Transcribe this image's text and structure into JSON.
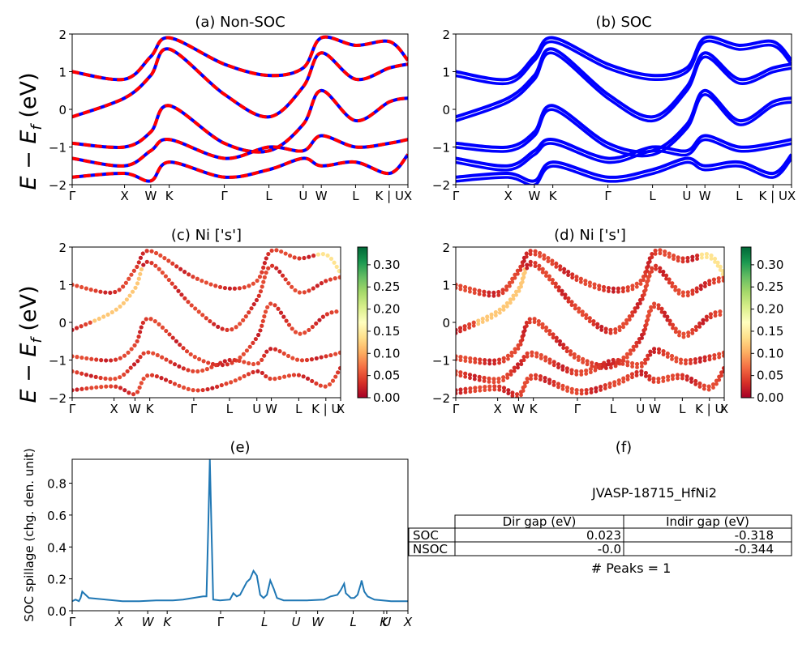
{
  "figure": {
    "ylabel_bands": "E − E",
    "ylabel_sub": "f",
    "ylabel_unit": " (eV)",
    "hs_labels": [
      "Γ",
      "X",
      "W",
      "K",
      "Γ",
      "L",
      "U",
      "W",
      "L",
      "K | U",
      "X"
    ]
  },
  "chart_data": [
    {
      "id": "a",
      "type": "line",
      "title": "(a) Non-SOC",
      "ylabel": "E − E_f (eV)",
      "ylim": [
        -2,
        2
      ],
      "yticks": [
        -2,
        -1,
        0,
        1,
        2
      ],
      "xtick_labels": [
        "Γ",
        "X",
        "W",
        "K",
        "Γ",
        "L",
        "U",
        "W",
        "L",
        "K | U",
        "X"
      ],
      "series_colors": [
        "#ff0000",
        "#0000ff"
      ],
      "band_anchor_energies": [
        [
          -0.2,
          0.3,
          0.9,
          1.6,
          0.4,
          -0.2,
          0.6,
          1.5,
          0.8,
          1.1,
          1.2
        ],
        [
          -0.9,
          -1.0,
          -0.6,
          0.1,
          -0.9,
          -1.1,
          -0.4,
          0.5,
          -0.3,
          0.2,
          0.3
        ],
        [
          -1.3,
          -1.5,
          -1.1,
          -0.8,
          -1.3,
          -1.0,
          -1.1,
          -0.7,
          -1.0,
          -0.9,
          -0.8
        ],
        [
          -1.8,
          -1.7,
          -1.9,
          -1.4,
          -1.8,
          -1.6,
          -1.3,
          -1.5,
          -1.4,
          -1.7,
          -1.2
        ],
        [
          1.0,
          0.8,
          1.4,
          1.9,
          1.2,
          0.9,
          1.1,
          1.9,
          1.7,
          1.8,
          1.3
        ]
      ]
    },
    {
      "id": "b",
      "type": "line",
      "title": "(b) SOC",
      "ylim": [
        -2,
        2
      ],
      "yticks": [
        -2,
        -1,
        0,
        1,
        2
      ],
      "xtick_labels": [
        "Γ",
        "X",
        "W",
        "K",
        "Γ",
        "L",
        "U",
        "W",
        "L",
        "K | U",
        "X"
      ],
      "series_colors": [
        "#0000ff"
      ],
      "band_anchor_energies": [
        [
          -0.2,
          0.3,
          0.9,
          1.6,
          0.4,
          -0.2,
          0.6,
          1.5,
          0.8,
          1.1,
          1.2
        ],
        [
          -0.9,
          -1.0,
          -0.6,
          0.1,
          -0.9,
          -1.1,
          -0.4,
          0.5,
          -0.3,
          0.2,
          0.3
        ],
        [
          -1.3,
          -1.5,
          -1.1,
          -0.8,
          -1.3,
          -1.0,
          -1.1,
          -0.7,
          -1.0,
          -0.9,
          -0.8
        ],
        [
          -1.8,
          -1.7,
          -1.9,
          -1.4,
          -1.8,
          -1.6,
          -1.3,
          -1.5,
          -1.4,
          -1.7,
          -1.2
        ],
        [
          1.0,
          0.8,
          1.4,
          1.9,
          1.2,
          0.9,
          1.1,
          1.9,
          1.7,
          1.8,
          1.3
        ]
      ]
    },
    {
      "id": "c",
      "type": "scatter",
      "title": "(c)  Ni ['s']",
      "ylabel": "E − E_f (eV)",
      "ylim": [
        -2,
        2
      ],
      "yticks": [
        -2,
        -1,
        0,
        1,
        2
      ],
      "xtick_labels": [
        "Γ",
        "X",
        "W",
        "K",
        "Γ",
        "L",
        "U",
        "W",
        "L",
        "K | U",
        "X"
      ],
      "colorbar": {
        "cmap": "RdYlGn",
        "range": [
          0,
          0.34
        ],
        "ticks": [
          "0.00",
          "0.05",
          "0.10",
          "0.15",
          "0.20",
          "0.25",
          "0.30"
        ]
      },
      "band_anchor_energies": [
        [
          -0.2,
          0.3,
          0.9,
          1.6,
          0.4,
          -0.2,
          0.6,
          1.5,
          0.8,
          1.1,
          1.2
        ],
        [
          -0.9,
          -1.0,
          -0.6,
          0.1,
          -0.9,
          -1.1,
          -0.4,
          0.5,
          -0.3,
          0.2,
          0.3
        ],
        [
          -1.3,
          -1.5,
          -1.1,
          -0.8,
          -1.3,
          -1.0,
          -1.1,
          -0.7,
          -1.0,
          -0.9,
          -0.8
        ],
        [
          -1.8,
          -1.7,
          -1.9,
          -1.4,
          -1.8,
          -1.6,
          -1.3,
          -1.5,
          -1.4,
          -1.7,
          -1.2
        ],
        [
          1.0,
          0.8,
          1.4,
          1.9,
          1.2,
          0.9,
          1.1,
          1.9,
          1.7,
          1.8,
          1.3
        ]
      ]
    },
    {
      "id": "d",
      "type": "scatter",
      "title": "(d) Ni ['s']",
      "ylim": [
        -2,
        2
      ],
      "yticks": [
        -2,
        -1,
        0,
        1,
        2
      ],
      "xtick_labels": [
        "Γ",
        "X",
        "W",
        "K",
        "Γ",
        "L",
        "U",
        "W",
        "L",
        "K | U",
        "X"
      ],
      "colorbar": {
        "cmap": "RdYlGn",
        "range": [
          0,
          0.34
        ],
        "ticks": [
          "0.00",
          "0.05",
          "0.10",
          "0.15",
          "0.20",
          "0.25",
          "0.30"
        ]
      },
      "band_anchor_energies": [
        [
          -0.2,
          0.3,
          0.9,
          1.6,
          0.4,
          -0.2,
          0.6,
          1.5,
          0.8,
          1.1,
          1.2
        ],
        [
          -0.9,
          -1.0,
          -0.6,
          0.1,
          -0.9,
          -1.1,
          -0.4,
          0.5,
          -0.3,
          0.2,
          0.3
        ],
        [
          -1.3,
          -1.5,
          -1.1,
          -0.8,
          -1.3,
          -1.0,
          -1.1,
          -0.7,
          -1.0,
          -0.9,
          -0.8
        ],
        [
          -1.8,
          -1.7,
          -1.9,
          -1.4,
          -1.8,
          -1.6,
          -1.3,
          -1.5,
          -1.4,
          -1.7,
          -1.2
        ],
        [
          1.0,
          0.8,
          1.4,
          1.9,
          1.2,
          0.9,
          1.1,
          1.9,
          1.7,
          1.8,
          1.3
        ]
      ]
    },
    {
      "id": "e",
      "type": "line",
      "title": "(e)",
      "ylabel": "SOC spillage (chg. den. unit)",
      "ylim": [
        0,
        0.95
      ],
      "yticks": [
        0.0,
        0.2,
        0.4,
        0.6,
        0.8
      ],
      "ytick_labels": [
        "0.0",
        "0.2",
        "0.4",
        "0.6",
        "0.8"
      ],
      "xtick_labels": [
        "Γ",
        "X",
        "W",
        "K",
        "Γ",
        "L",
        "U",
        "W",
        "L",
        "K",
        "U",
        "X"
      ],
      "xtick_positions": [
        0,
        0.14,
        0.225,
        0.283,
        0.442,
        0.573,
        0.667,
        0.731,
        0.837,
        0.928,
        0.937,
        1.0
      ],
      "color": "#1f77b4",
      "x": [
        0,
        0.01,
        0.02,
        0.025,
        0.03,
        0.05,
        0.1,
        0.15,
        0.2,
        0.25,
        0.3,
        0.33,
        0.36,
        0.39,
        0.4,
        0.405,
        0.41,
        0.415,
        0.42,
        0.44,
        0.47,
        0.48,
        0.49,
        0.5,
        0.52,
        0.525,
        0.53,
        0.54,
        0.55,
        0.56,
        0.57,
        0.58,
        0.59,
        0.6,
        0.61,
        0.63,
        0.7,
        0.75,
        0.77,
        0.79,
        0.8,
        0.81,
        0.815,
        0.82,
        0.825,
        0.83,
        0.84,
        0.85,
        0.86,
        0.862,
        0.87,
        0.88,
        0.9,
        0.95,
        1.0
      ],
      "y": [
        0.06,
        0.07,
        0.06,
        0.08,
        0.12,
        0.08,
        0.07,
        0.06,
        0.06,
        0.065,
        0.065,
        0.07,
        0.08,
        0.09,
        0.09,
        0.5,
        0.95,
        0.5,
        0.07,
        0.065,
        0.07,
        0.11,
        0.09,
        0.1,
        0.18,
        0.19,
        0.2,
        0.25,
        0.22,
        0.1,
        0.08,
        0.1,
        0.19,
        0.14,
        0.08,
        0.065,
        0.065,
        0.07,
        0.09,
        0.1,
        0.13,
        0.17,
        0.11,
        0.1,
        0.09,
        0.08,
        0.08,
        0.1,
        0.17,
        0.19,
        0.12,
        0.09,
        0.07,
        0.06,
        0.06
      ]
    },
    {
      "id": "f",
      "type": "table",
      "title": "(f)",
      "caption": "JVASP-18715_HfNi2",
      "columns": [
        "Dir gap (eV)",
        "Indir gap (eV)"
      ],
      "rows": [
        {
          "label": "SOC",
          "values": [
            "0.023",
            "-0.318"
          ]
        },
        {
          "label": "NSOC",
          "values": [
            "-0.0",
            "-0.344"
          ]
        }
      ],
      "footer": "# Peaks = 1"
    }
  ]
}
